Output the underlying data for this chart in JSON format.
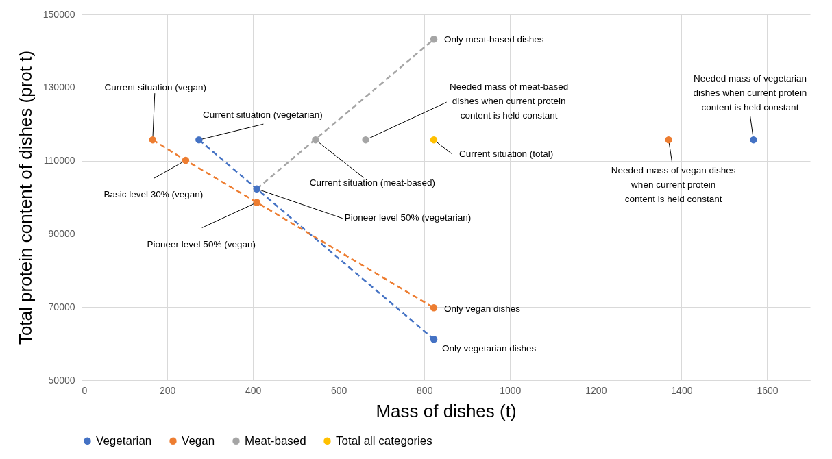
{
  "chart_data": {
    "type": "scatter",
    "xlabel": "Mass of dishes (t)",
    "ylabel": "Total protein content of dishes (prot t)",
    "xlim": [
      0,
      1700
    ],
    "xticks": [
      0,
      200,
      400,
      600,
      800,
      1000,
      1200,
      1400,
      1600
    ],
    "ylim": [
      50000,
      150000
    ],
    "yticks": [
      50000,
      70000,
      90000,
      110000,
      130000,
      150000
    ],
    "grid": true,
    "legend": "bottom",
    "marker": "circle",
    "series": [
      {
        "name": "Vegetarian",
        "color": "#4472c4",
        "x": [
          274,
          409,
          822,
          1568
        ],
        "values": [
          115700,
          102300,
          61200,
          115700
        ]
      },
      {
        "name": "Vegan",
        "color": "#ed7d31",
        "x": [
          166,
          243,
          409,
          822,
          1370
        ],
        "values": [
          115700,
          110100,
          98600,
          69800,
          115700
        ]
      },
      {
        "name": "Meat-based",
        "color": "#a5a5a5",
        "x": [
          546,
          663,
          822
        ],
        "values": [
          115700,
          115700,
          143200
        ]
      },
      {
        "name": "Total all categories",
        "color": "#ffc000",
        "x": [
          822
        ],
        "values": [
          115700
        ]
      },
      {
        "type": "line",
        "line_style": "dashed",
        "marker": "none",
        "color": "#4472c4",
        "x": [
          274,
          409,
          822
        ],
        "values": [
          115700,
          102300,
          61200
        ]
      },
      {
        "type": "line",
        "line_style": "dashed",
        "marker": "none",
        "color": "#ed7d31",
        "x": [
          166,
          243,
          409,
          822
        ],
        "values": [
          115700,
          110100,
          98600,
          69800
        ]
      },
      {
        "type": "line",
        "line_style": "dashed",
        "marker": "none",
        "color": "#a5a5a5",
        "x": [
          409,
          822
        ],
        "values": [
          102300,
          143200
        ]
      }
    ],
    "annotations": [
      {
        "text": "Current situation (vegan)",
        "x": 166,
        "y": 115700
      },
      {
        "text": "Current situation (vegetarian)",
        "x": 274,
        "y": 115700
      },
      {
        "text": "Basic level 30% (vegan)",
        "x": 243,
        "y": 110100
      },
      {
        "text": "Pioneer level 50% (vegan)",
        "x": 409,
        "y": 98600
      },
      {
        "text": "Pioneer level 50% (vegetarian)",
        "x": 409,
        "y": 102300
      },
      {
        "text": "Current situation (meat-based)",
        "x": 546,
        "y": 115700
      },
      {
        "text": "Needed mass of meat-based dishes when current protein content is held constant",
        "x": 663,
        "y": 115700
      },
      {
        "text": "Only meat-based dishes",
        "x": 822,
        "y": 143200
      },
      {
        "text": "Current situation (total)",
        "x": 822,
        "y": 115700
      },
      {
        "text": "Only vegan dishes",
        "x": 822,
        "y": 69800
      },
      {
        "text": "Only vegetarian dishes",
        "x": 822,
        "y": 61200
      },
      {
        "text": "Needed mass of vegan dishes when current protein content is held constant",
        "x": 1370,
        "y": 115700
      },
      {
        "text": "Needed mass of vegetarian dishes when current protein content is held constant",
        "x": 1568,
        "y": 115700
      }
    ]
  }
}
